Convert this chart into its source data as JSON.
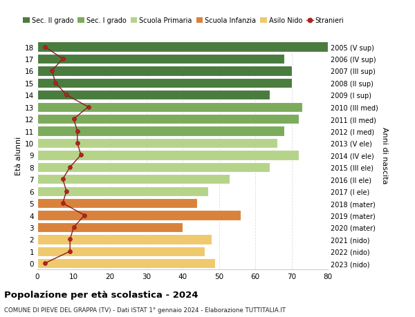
{
  "ages": [
    18,
    17,
    16,
    15,
    14,
    13,
    12,
    11,
    10,
    9,
    8,
    7,
    6,
    5,
    4,
    3,
    2,
    1,
    0
  ],
  "years": [
    "2005 (V sup)",
    "2006 (IV sup)",
    "2007 (III sup)",
    "2008 (II sup)",
    "2009 (I sup)",
    "2010 (III med)",
    "2011 (II med)",
    "2012 (I med)",
    "2013 (V ele)",
    "2014 (IV ele)",
    "2015 (III ele)",
    "2016 (II ele)",
    "2017 (I ele)",
    "2018 (mater)",
    "2019 (mater)",
    "2020 (mater)",
    "2021 (nido)",
    "2022 (nido)",
    "2023 (nido)"
  ],
  "bar_values": [
    80,
    68,
    70,
    70,
    64,
    73,
    72,
    68,
    66,
    72,
    64,
    53,
    47,
    44,
    56,
    40,
    48,
    46,
    49
  ],
  "bar_colors": [
    "#4a7c3f",
    "#4a7c3f",
    "#4a7c3f",
    "#4a7c3f",
    "#4a7c3f",
    "#7dab5c",
    "#7dab5c",
    "#7dab5c",
    "#b5d48a",
    "#b5d48a",
    "#b5d48a",
    "#b5d48a",
    "#b5d48a",
    "#d9823b",
    "#d9823b",
    "#d9823b",
    "#f0c96e",
    "#f0c96e",
    "#f0c96e"
  ],
  "stranieri_values": [
    2,
    7,
    4,
    5,
    8,
    14,
    10,
    11,
    11,
    12,
    9,
    7,
    8,
    7,
    13,
    10,
    9,
    9,
    2
  ],
  "legend_labels": [
    "Sec. II grado",
    "Sec. I grado",
    "Scuola Primaria",
    "Scuola Infanzia",
    "Asilo Nido",
    "Stranieri"
  ],
  "legend_colors": [
    "#4a7c3f",
    "#7dab5c",
    "#b5d48a",
    "#d9823b",
    "#f0c96e",
    "#b22222"
  ],
  "title": "Popolazione per età scolastica - 2024",
  "subtitle": "COMUNE DI PIEVE DEL GRAPPA (TV) - Dati ISTAT 1° gennaio 2024 - Elaborazione TUTTITALIA.IT",
  "ylabel_left": "Età alunni",
  "ylabel_right": "Anni di nascita",
  "xlim": [
    0,
    80
  ],
  "xticks": [
    0,
    10,
    20,
    30,
    40,
    50,
    60,
    70,
    80
  ],
  "background_color": "#ffffff",
  "grid_color": "#dddddd",
  "bar_height": 0.82
}
